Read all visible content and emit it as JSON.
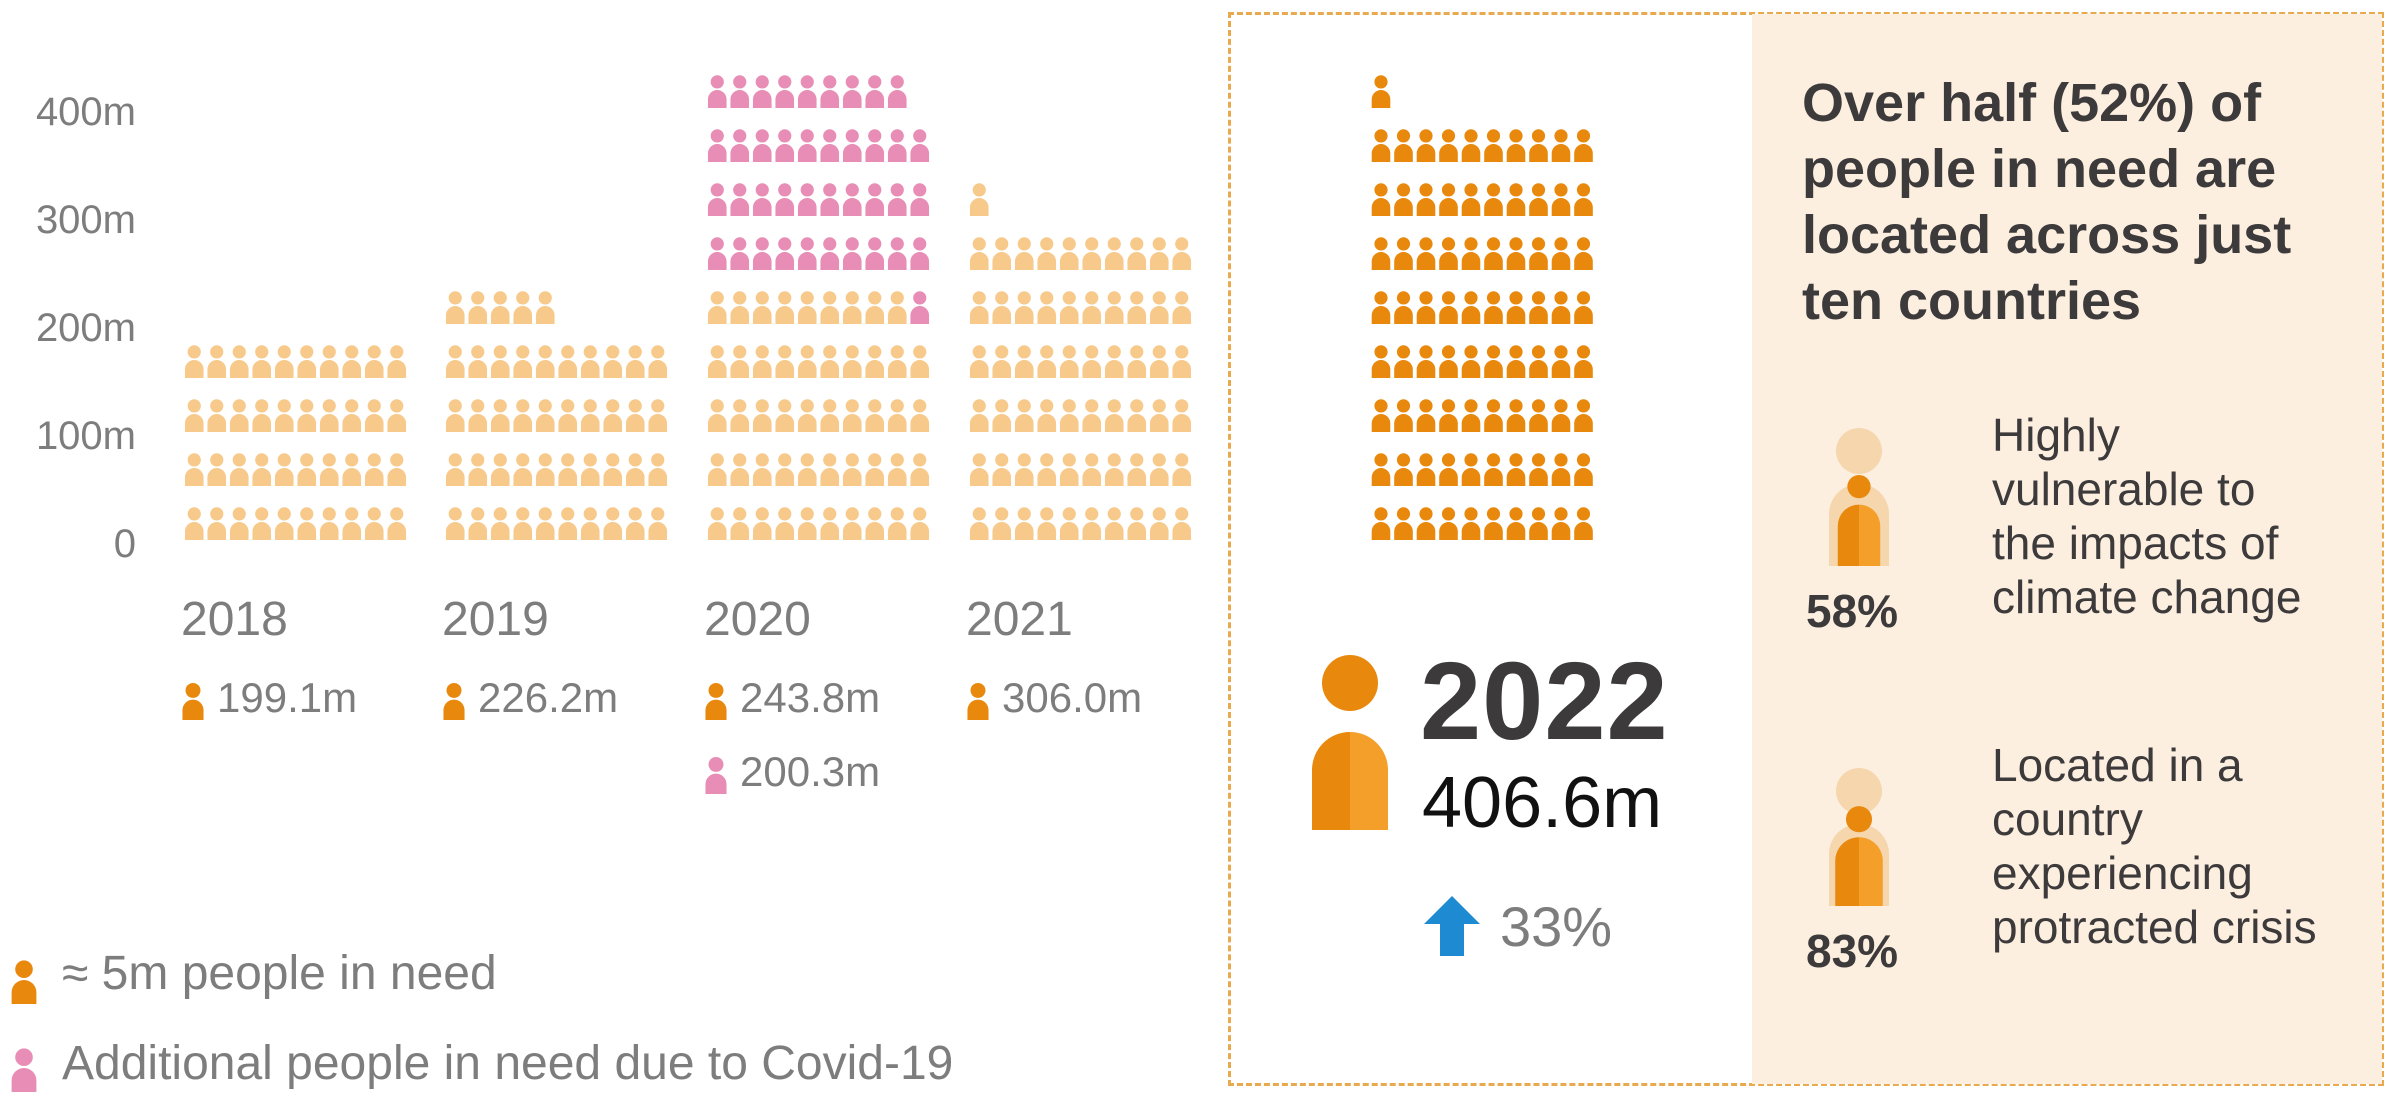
{
  "chart_data": {
    "type": "pictograph",
    "y_ticks": [
      "0",
      "100m",
      "200m",
      "300m",
      "400m"
    ],
    "unit_value_m": 5,
    "years": [
      {
        "year": "2018",
        "value_m": 199.1,
        "label": "199.1m"
      },
      {
        "year": "2019",
        "value_m": 226.2,
        "label": "226.2m"
      },
      {
        "year": "2020",
        "value_m": 443.8,
        "label": "243.8m",
        "covid_m": 200.3,
        "covid_label": "200.3m"
      },
      {
        "year": "2021",
        "value_m": 306.0,
        "label": "306.0m"
      }
    ],
    "legend": [
      {
        "key": "base",
        "label": "≈ 5m people in need"
      },
      {
        "key": "covid",
        "label": "Additional people in need due to Covid-19"
      }
    ],
    "colors": {
      "light_orange": "#f7c98a",
      "orange": "#e8890d",
      "dark_orange": "#f39f29",
      "pink": "#e88db5",
      "light_pink": "#f6c2d8",
      "arrow": "#1d8ad1",
      "panel_border": "#e9a94f",
      "panel_fill": "#fcefe0"
    }
  },
  "highlight": {
    "year": "2022",
    "value_label": "406.6m",
    "value_m": 406.6,
    "change_label": "33%",
    "change_icon": "arrow-up-icon"
  },
  "facts": {
    "headline": "Over half (52%) of people in need are located across just ten countries",
    "items": [
      {
        "percent": "58%",
        "value": 0.58,
        "text": "Highly vulnerable to the impacts of climate change"
      },
      {
        "percent": "83%",
        "value": 0.83,
        "text": "Located in a country experiencing protracted crisis"
      }
    ]
  }
}
